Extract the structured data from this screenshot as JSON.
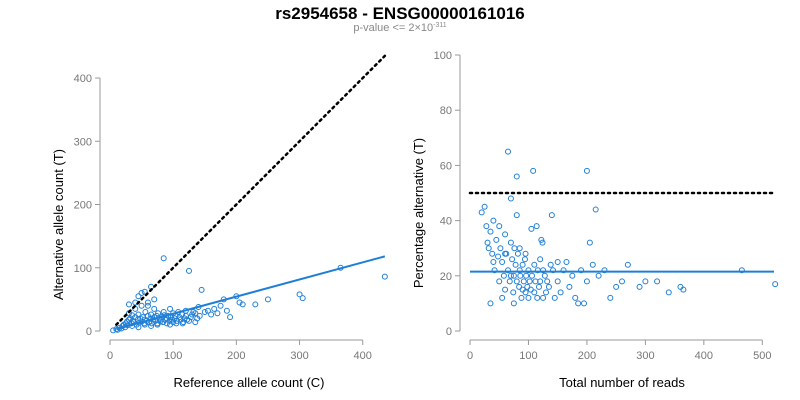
{
  "title": "rs2954658 - ENSG00000161016",
  "subtitle": {
    "prefix": "p-value <= 2×10",
    "exponent": "-311"
  },
  "colors": {
    "points": "#1f7fd6",
    "fit": "#1f7fd6",
    "reference": "#000000",
    "axis": "#999999"
  },
  "chart_data": [
    {
      "type": "scatter",
      "xlabel": "Reference allele count (C)",
      "ylabel": "Alternative allele count (T)",
      "xlim": [
        0,
        440
      ],
      "ylim": [
        0,
        400
      ],
      "xticks": [
        0,
        100,
        200,
        300,
        400
      ],
      "yticks": [
        0,
        100,
        200,
        300,
        400
      ],
      "reference_line": {
        "style": "dotted",
        "x": [
          10,
          435
        ],
        "y": [
          10,
          435
        ]
      },
      "fit_line": {
        "style": "solid",
        "x": [
          10,
          435
        ],
        "y": [
          3,
          118
        ]
      },
      "points": [
        [
          5,
          1
        ],
        [
          10,
          3
        ],
        [
          12,
          2
        ],
        [
          15,
          5
        ],
        [
          18,
          4
        ],
        [
          20,
          8
        ],
        [
          22,
          10
        ],
        [
          24,
          6
        ],
        [
          25,
          12
        ],
        [
          27,
          15
        ],
        [
          28,
          9
        ],
        [
          30,
          18
        ],
        [
          30,
          42
        ],
        [
          32,
          20
        ],
        [
          34,
          12
        ],
        [
          35,
          25
        ],
        [
          36,
          16
        ],
        [
          38,
          14
        ],
        [
          40,
          22
        ],
        [
          40,
          45
        ],
        [
          42,
          10
        ],
        [
          44,
          18
        ],
        [
          45,
          26
        ],
        [
          46,
          13
        ],
        [
          48,
          20
        ],
        [
          50,
          15
        ],
        [
          50,
          60
        ],
        [
          52,
          22
        ],
        [
          54,
          12
        ],
        [
          55,
          18
        ],
        [
          56,
          30
        ],
        [
          58,
          16
        ],
        [
          60,
          24
        ],
        [
          60,
          40
        ],
        [
          62,
          14
        ],
        [
          64,
          20
        ],
        [
          65,
          26
        ],
        [
          66,
          12
        ],
        [
          68,
          18
        ],
        [
          70,
          22
        ],
        [
          70,
          35
        ],
        [
          72,
          16
        ],
        [
          74,
          24
        ],
        [
          75,
          12
        ],
        [
          76,
          28
        ],
        [
          78,
          20
        ],
        [
          80,
          18
        ],
        [
          80,
          15
        ],
        [
          82,
          22
        ],
        [
          84,
          14
        ],
        [
          85,
          30
        ],
        [
          86,
          25
        ],
        [
          88,
          18
        ],
        [
          90,
          20
        ],
        [
          90,
          12
        ],
        [
          92,
          24
        ],
        [
          94,
          16
        ],
        [
          95,
          35
        ],
        [
          96,
          22
        ],
        [
          98,
          18
        ],
        [
          100,
          28
        ],
        [
          100,
          14
        ],
        [
          102,
          20
        ],
        [
          104,
          24
        ],
        [
          106,
          16
        ],
        [
          108,
          30
        ],
        [
          110,
          22
        ],
        [
          112,
          18
        ],
        [
          114,
          26
        ],
        [
          116,
          14
        ],
        [
          118,
          20
        ],
        [
          120,
          32
        ],
        [
          120,
          24
        ],
        [
          122,
          18
        ],
        [
          125,
          95
        ],
        [
          128,
          22
        ],
        [
          130,
          26
        ],
        [
          132,
          30
        ],
        [
          135,
          28
        ],
        [
          138,
          20
        ],
        [
          140,
          38
        ],
        [
          142,
          24
        ],
        [
          145,
          65
        ],
        [
          150,
          30
        ],
        [
          155,
          32
        ],
        [
          160,
          26
        ],
        [
          165,
          35
        ],
        [
          170,
          28
        ],
        [
          175,
          40
        ],
        [
          180,
          50
        ],
        [
          185,
          32
        ],
        [
          190,
          22
        ],
        [
          200,
          55
        ],
        [
          205,
          45
        ],
        [
          210,
          42
        ],
        [
          230,
          42
        ],
        [
          250,
          50
        ],
        [
          300,
          58
        ],
        [
          305,
          52
        ],
        [
          365,
          100
        ],
        [
          435,
          86
        ],
        [
          45,
          55
        ],
        [
          55,
          62
        ],
        [
          65,
          70
        ],
        [
          85,
          115
        ],
        [
          30,
          28
        ],
        [
          40,
          35
        ],
        [
          50,
          40
        ],
        [
          60,
          45
        ],
        [
          70,
          50
        ],
        [
          35,
          8
        ],
        [
          45,
          6
        ],
        [
          55,
          10
        ],
        [
          65,
          8
        ],
        [
          75,
          10
        ],
        [
          95,
          10
        ],
        [
          105,
          12
        ],
        [
          115,
          12
        ],
        [
          125,
          16
        ],
        [
          135,
          14
        ]
      ]
    },
    {
      "type": "scatter",
      "xlabel": "Total number of reads",
      "ylabel": "Percentage alternative (T)",
      "xlim": [
        0,
        520
      ],
      "ylim": [
        0,
        100
      ],
      "xticks": [
        0,
        100,
        200,
        300,
        400,
        500
      ],
      "yticks": [
        0,
        20,
        40,
        60,
        80,
        100
      ],
      "reference_line": {
        "style": "dotted",
        "y": 50
      },
      "fit_line": {
        "style": "solid",
        "y": 21.5
      },
      "points": [
        [
          20,
          43
        ],
        [
          25,
          45
        ],
        [
          28,
          38
        ],
        [
          30,
          32
        ],
        [
          32,
          30
        ],
        [
          35,
          36
        ],
        [
          38,
          28
        ],
        [
          40,
          40
        ],
        [
          40,
          25
        ],
        [
          42,
          22
        ],
        [
          45,
          33
        ],
        [
          48,
          27
        ],
        [
          50,
          38
        ],
        [
          50,
          18
        ],
        [
          52,
          30
        ],
        [
          55,
          25
        ],
        [
          58,
          20
        ],
        [
          60,
          35
        ],
        [
          60,
          15
        ],
        [
          62,
          28
        ],
        [
          65,
          22
        ],
        [
          65,
          65
        ],
        [
          68,
          18
        ],
        [
          70,
          32
        ],
        [
          70,
          48
        ],
        [
          72,
          26
        ],
        [
          74,
          14
        ],
        [
          75,
          20
        ],
        [
          76,
          30
        ],
        [
          78,
          24
        ],
        [
          80,
          56
        ],
        [
          80,
          42
        ],
        [
          80,
          18
        ],
        [
          82,
          28
        ],
        [
          84,
          16
        ],
        [
          85,
          22
        ],
        [
          86,
          20
        ],
        [
          88,
          12
        ],
        [
          90,
          24
        ],
        [
          90,
          15
        ],
        [
          92,
          18
        ],
        [
          94,
          26
        ],
        [
          95,
          14
        ],
        [
          96,
          20
        ],
        [
          98,
          16
        ],
        [
          100,
          22
        ],
        [
          100,
          12
        ],
        [
          102,
          18
        ],
        [
          104,
          15
        ],
        [
          105,
          37
        ],
        [
          106,
          20
        ],
        [
          108,
          58
        ],
        [
          110,
          14
        ],
        [
          110,
          24
        ],
        [
          112,
          18
        ],
        [
          114,
          38
        ],
        [
          115,
          12
        ],
        [
          116,
          22
        ],
        [
          118,
          16
        ],
        [
          120,
          18
        ],
        [
          120,
          26
        ],
        [
          122,
          33
        ],
        [
          124,
          32
        ],
        [
          125,
          12
        ],
        [
          128,
          20
        ],
        [
          130,
          14
        ],
        [
          132,
          18
        ],
        [
          135,
          16
        ],
        [
          138,
          24
        ],
        [
          140,
          42
        ],
        [
          142,
          22
        ],
        [
          145,
          12
        ],
        [
          150,
          18
        ],
        [
          155,
          14
        ],
        [
          160,
          22
        ],
        [
          165,
          25
        ],
        [
          170,
          16
        ],
        [
          175,
          20
        ],
        [
          180,
          12
        ],
        [
          190,
          22
        ],
        [
          195,
          10
        ],
        [
          200,
          58
        ],
        [
          200,
          18
        ],
        [
          205,
          32
        ],
        [
          210,
          24
        ],
        [
          215,
          44
        ],
        [
          220,
          20
        ],
        [
          230,
          22
        ],
        [
          240,
          12
        ],
        [
          250,
          16
        ],
        [
          260,
          18
        ],
        [
          270,
          24
        ],
        [
          290,
          16
        ],
        [
          300,
          18
        ],
        [
          320,
          18
        ],
        [
          340,
          14
        ],
        [
          360,
          16
        ],
        [
          365,
          15
        ],
        [
          465,
          22
        ],
        [
          522,
          17
        ],
        [
          35,
          10
        ],
        [
          55,
          12
        ],
        [
          75,
          10
        ],
        [
          85,
          30
        ],
        [
          95,
          28
        ],
        [
          125,
          22
        ],
        [
          150,
          25
        ],
        [
          185,
          10
        ],
        [
          60,
          28
        ],
        [
          70,
          20
        ]
      ]
    }
  ]
}
